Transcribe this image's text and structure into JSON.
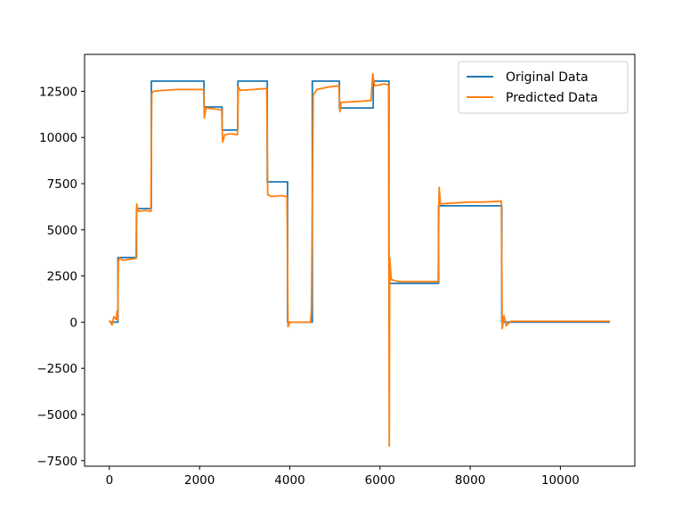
{
  "chart_data": {
    "type": "line",
    "title": "",
    "xlabel": "",
    "ylabel": "",
    "xlim": [
      -550,
      11650
    ],
    "ylim": [
      -7800,
      14500
    ],
    "xticks": [
      0,
      2000,
      4000,
      6000,
      8000,
      10000
    ],
    "yticks": [
      -7500,
      -5000,
      -2500,
      0,
      2500,
      5000,
      7500,
      10000,
      12500
    ],
    "grid": false,
    "legend": "top-right",
    "series": [
      {
        "name": "Original Data",
        "color": "#1f77b4",
        "points": [
          [
            0,
            0
          ],
          [
            190,
            0
          ],
          [
            190,
            3500
          ],
          [
            600,
            3500
          ],
          [
            600,
            6150
          ],
          [
            930,
            6150
          ],
          [
            930,
            13050
          ],
          [
            2100,
            13050
          ],
          [
            2100,
            11650
          ],
          [
            2500,
            11650
          ],
          [
            2500,
            10400
          ],
          [
            2850,
            10400
          ],
          [
            2850,
            13050
          ],
          [
            3500,
            13050
          ],
          [
            3500,
            7600
          ],
          [
            3950,
            7600
          ],
          [
            3950,
            0
          ],
          [
            4500,
            0
          ],
          [
            4500,
            13050
          ],
          [
            5100,
            13050
          ],
          [
            5100,
            11600
          ],
          [
            5850,
            11600
          ],
          [
            5850,
            13050
          ],
          [
            6200,
            13050
          ],
          [
            6200,
            2100
          ],
          [
            7300,
            2100
          ],
          [
            7300,
            6300
          ],
          [
            8700,
            6300
          ],
          [
            8700,
            0
          ],
          [
            11100,
            0
          ]
        ]
      },
      {
        "name": "Predicted Data",
        "color": "#ff7f0e",
        "points": [
          [
            0,
            100
          ],
          [
            60,
            -150
          ],
          [
            100,
            300
          ],
          [
            150,
            150
          ],
          [
            170,
            600
          ],
          [
            185,
            100
          ],
          [
            200,
            3300
          ],
          [
            230,
            3500
          ],
          [
            300,
            3350
          ],
          [
            450,
            3400
          ],
          [
            590,
            3450
          ],
          [
            605,
            6400
          ],
          [
            640,
            6000
          ],
          [
            800,
            6050
          ],
          [
            920,
            6000
          ],
          [
            940,
            12400
          ],
          [
            980,
            12500
          ],
          [
            1200,
            12550
          ],
          [
            1500,
            12600
          ],
          [
            1800,
            12600
          ],
          [
            2090,
            12600
          ],
          [
            2105,
            11050
          ],
          [
            2140,
            11600
          ],
          [
            2300,
            11550
          ],
          [
            2490,
            11500
          ],
          [
            2510,
            9750
          ],
          [
            2560,
            10150
          ],
          [
            2700,
            10200
          ],
          [
            2840,
            10150
          ],
          [
            2860,
            12750
          ],
          [
            2900,
            12550
          ],
          [
            3200,
            12600
          ],
          [
            3490,
            12650
          ],
          [
            3510,
            6900
          ],
          [
            3600,
            6800
          ],
          [
            3800,
            6850
          ],
          [
            3940,
            6800
          ],
          [
            3960,
            -250
          ],
          [
            4000,
            0
          ],
          [
            4300,
            0
          ],
          [
            4460,
            0
          ],
          [
            4480,
            700
          ],
          [
            4520,
            12300
          ],
          [
            4600,
            12600
          ],
          [
            4900,
            12750
          ],
          [
            5090,
            12800
          ],
          [
            5110,
            11400
          ],
          [
            5140,
            11900
          ],
          [
            5500,
            11950
          ],
          [
            5800,
            12000
          ],
          [
            5840,
            13450
          ],
          [
            5880,
            12800
          ],
          [
            6100,
            12900
          ],
          [
            6190,
            12850
          ],
          [
            6205,
            -6700
          ],
          [
            6215,
            3500
          ],
          [
            6250,
            2300
          ],
          [
            6400,
            2200
          ],
          [
            7000,
            2200
          ],
          [
            7290,
            2200
          ],
          [
            7310,
            7300
          ],
          [
            7340,
            6400
          ],
          [
            7600,
            6450
          ],
          [
            8000,
            6500
          ],
          [
            8300,
            6500
          ],
          [
            8690,
            6550
          ],
          [
            8710,
            -350
          ],
          [
            8750,
            350
          ],
          [
            8800,
            -200
          ],
          [
            8900,
            50
          ],
          [
            9500,
            50
          ],
          [
            11100,
            50
          ]
        ]
      }
    ]
  }
}
